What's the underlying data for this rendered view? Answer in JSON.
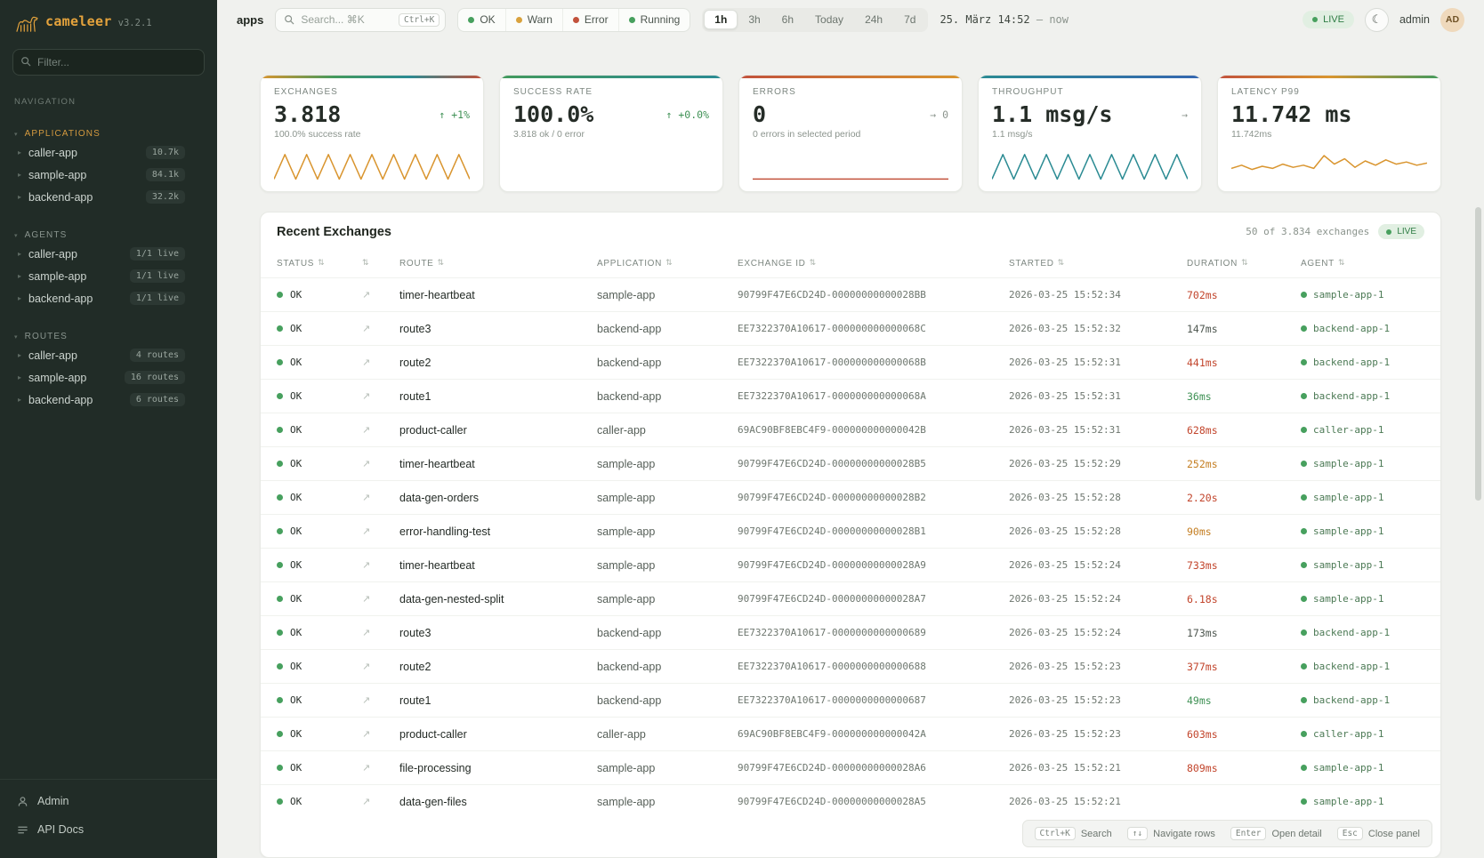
{
  "brand": {
    "name": "cameleer",
    "version": "v3.2.1"
  },
  "colors": {
    "ok_dot": "#47a05e",
    "accent_orange": "#e5a33c",
    "error_red": "#c2523c",
    "teal": "#2b8b93"
  },
  "icons": {
    "moon": "☾",
    "open_detail": "↗",
    "sort": "⇅",
    "chevron_right": "▸",
    "caret_down": "▾"
  },
  "sidebar": {
    "filter_placeholder": "Filter...",
    "nav_label": "NAVIGATION",
    "sections": [
      {
        "label": "APPLICATIONS",
        "tone": "accent",
        "items": [
          {
            "label": "caller-app",
            "badge": "10.7k"
          },
          {
            "label": "sample-app",
            "badge": "84.1k"
          },
          {
            "label": "backend-app",
            "badge": "32.2k"
          }
        ]
      },
      {
        "label": "AGENTS",
        "items": [
          {
            "label": "caller-app",
            "badge": "1/1 live"
          },
          {
            "label": "sample-app",
            "badge": "1/1 live"
          },
          {
            "label": "backend-app",
            "badge": "1/1 live"
          }
        ]
      },
      {
        "label": "ROUTES",
        "items": [
          {
            "label": "caller-app",
            "badge": "4 routes"
          },
          {
            "label": "sample-app",
            "badge": "16 routes"
          },
          {
            "label": "backend-app",
            "badge": "6 routes"
          }
        ]
      }
    ],
    "footer": {
      "admin": "Admin",
      "api_docs": "API Docs"
    }
  },
  "topbar": {
    "context": "apps",
    "search": {
      "placeholder": "Search... ⌘K",
      "kbd": "Ctrl+K"
    },
    "status_filters": [
      {
        "label": "OK",
        "color": "#47a05e"
      },
      {
        "label": "Warn",
        "color": "#d9a23d"
      },
      {
        "label": "Error",
        "color": "#c2523c"
      },
      {
        "label": "Running",
        "color": "#47a05e"
      }
    ],
    "time_ranges": [
      {
        "label": "1h",
        "state": "active"
      },
      {
        "label": "3h"
      },
      {
        "label": "6h"
      },
      {
        "label": "Today"
      },
      {
        "label": "24h"
      },
      {
        "label": "7d"
      }
    ],
    "date_start": "25. März 14:52",
    "date_sep": "—",
    "date_end": "now",
    "live_label": "LIVE",
    "user": "admin",
    "avatar": "AD"
  },
  "cards": [
    {
      "title": "EXCHANGES",
      "value": "3.818",
      "delta": "↑ +1%",
      "delta_tone": "up",
      "subtext": "100.0% success rate",
      "accent": "linear-gradient(90deg,#d9952f,#439a5d,#2b8b93,#c2523c)",
      "spark": {
        "color": "#d9952f",
        "points": [
          27,
          4,
          27,
          4,
          27,
          4,
          27,
          4,
          27,
          4,
          27,
          4,
          27,
          4,
          27,
          4,
          27,
          4,
          27
        ]
      }
    },
    {
      "title": "SUCCESS RATE",
      "value": "100.0%",
      "delta": "↑ +0.0%",
      "delta_tone": "up",
      "subtext": "3.818 ok / 0 error",
      "accent": "linear-gradient(90deg,#439a5d,#2b8b93)"
    },
    {
      "title": "ERRORS",
      "value": "0",
      "delta": "→ 0",
      "delta_tone": "flat",
      "subtext": "0 errors in selected period",
      "accent": "linear-gradient(90deg,#c2523c,#d9952f)",
      "spark": {
        "color": "#c2523c",
        "points": [
          27,
          27
        ]
      }
    },
    {
      "title": "THROUGHPUT",
      "value": "1.1 msg/s",
      "delta": "→",
      "delta_tone": "flat",
      "subtext": "1.1 msg/s",
      "accent": "linear-gradient(90deg,#2b8b93,#3567b0)",
      "spark": {
        "color": "#2b8b93",
        "points": [
          27,
          4,
          27,
          4,
          27,
          4,
          27,
          4,
          27,
          4,
          27,
          4,
          27,
          4,
          27,
          4,
          27,
          4,
          27
        ]
      }
    },
    {
      "title": "LATENCY P99",
      "value": "11.742 ms",
      "subtext": "11.742ms",
      "accent": "linear-gradient(90deg,#c2523c,#d9952f,#439a5d)",
      "spark": {
        "color": "#d9952f",
        "points": [
          17,
          14,
          18,
          15,
          17,
          13,
          16,
          14,
          17,
          5,
          13,
          8,
          16,
          10,
          14,
          9,
          13,
          11,
          14,
          12
        ]
      }
    }
  ],
  "table": {
    "title": "Recent Exchanges",
    "summary": "50 of 3.834 exchanges",
    "live_label": "LIVE",
    "columns": {
      "status": "STATUS",
      "route": "ROUTE",
      "application": "APPLICATION",
      "exchange_id": "EXCHANGE ID",
      "started": "STARTED",
      "duration": "DURATION",
      "agent": "AGENT"
    },
    "rows": [
      {
        "status": "OK",
        "route": "timer-heartbeat",
        "application": "sample-app",
        "exchange_id": "90799F47E6CD24D-00000000000028BB",
        "started": "2026-03-25 15:52:34",
        "duration": "702ms",
        "duration_level": "red",
        "agent": "sample-app-1"
      },
      {
        "status": "OK",
        "route": "route3",
        "application": "backend-app",
        "exchange_id": "EE7322370A10617-000000000000068C",
        "started": "2026-03-25 15:52:32",
        "duration": "147ms",
        "duration_level": "normal",
        "agent": "backend-app-1"
      },
      {
        "status": "OK",
        "route": "route2",
        "application": "backend-app",
        "exchange_id": "EE7322370A10617-000000000000068B",
        "started": "2026-03-25 15:52:31",
        "duration": "441ms",
        "duration_level": "red",
        "agent": "backend-app-1"
      },
      {
        "status": "OK",
        "route": "route1",
        "application": "backend-app",
        "exchange_id": "EE7322370A10617-000000000000068A",
        "started": "2026-03-25 15:52:31",
        "duration": "36ms",
        "duration_level": "green",
        "agent": "backend-app-1"
      },
      {
        "status": "OK",
        "route": "product-caller",
        "application": "caller-app",
        "exchange_id": "69AC90BF8EBC4F9-000000000000042B",
        "started": "2026-03-25 15:52:31",
        "duration": "628ms",
        "duration_level": "red",
        "agent": "caller-app-1"
      },
      {
        "status": "OK",
        "route": "timer-heartbeat",
        "application": "sample-app",
        "exchange_id": "90799F47E6CD24D-00000000000028B5",
        "started": "2026-03-25 15:52:29",
        "duration": "252ms",
        "duration_level": "orange",
        "agent": "sample-app-1"
      },
      {
        "status": "OK",
        "route": "data-gen-orders",
        "application": "sample-app",
        "exchange_id": "90799F47E6CD24D-00000000000028B2",
        "started": "2026-03-25 15:52:28",
        "duration": "2.20s",
        "duration_level": "red",
        "agent": "sample-app-1"
      },
      {
        "status": "OK",
        "route": "error-handling-test",
        "application": "sample-app",
        "exchange_id": "90799F47E6CD24D-00000000000028B1",
        "started": "2026-03-25 15:52:28",
        "duration": "90ms",
        "duration_level": "orange",
        "agent": "sample-app-1"
      },
      {
        "status": "OK",
        "route": "timer-heartbeat",
        "application": "sample-app",
        "exchange_id": "90799F47E6CD24D-00000000000028A9",
        "started": "2026-03-25 15:52:24",
        "duration": "733ms",
        "duration_level": "red",
        "agent": "sample-app-1"
      },
      {
        "status": "OK",
        "route": "data-gen-nested-split",
        "application": "sample-app",
        "exchange_id": "90799F47E6CD24D-00000000000028A7",
        "started": "2026-03-25 15:52:24",
        "duration": "6.18s",
        "duration_level": "red",
        "agent": "sample-app-1"
      },
      {
        "status": "OK",
        "route": "route3",
        "application": "backend-app",
        "exchange_id": "EE7322370A10617-0000000000000689",
        "started": "2026-03-25 15:52:24",
        "duration": "173ms",
        "duration_level": "normal",
        "agent": "backend-app-1"
      },
      {
        "status": "OK",
        "route": "route2",
        "application": "backend-app",
        "exchange_id": "EE7322370A10617-0000000000000688",
        "started": "2026-03-25 15:52:23",
        "duration": "377ms",
        "duration_level": "red",
        "agent": "backend-app-1"
      },
      {
        "status": "OK",
        "route": "route1",
        "application": "backend-app",
        "exchange_id": "EE7322370A10617-0000000000000687",
        "started": "2026-03-25 15:52:23",
        "duration": "49ms",
        "duration_level": "green",
        "agent": "backend-app-1"
      },
      {
        "status": "OK",
        "route": "product-caller",
        "application": "caller-app",
        "exchange_id": "69AC90BF8EBC4F9-000000000000042A",
        "started": "2026-03-25 15:52:23",
        "duration": "603ms",
        "duration_level": "red",
        "agent": "caller-app-1"
      },
      {
        "status": "OK",
        "route": "file-processing",
        "application": "sample-app",
        "exchange_id": "90799F47E6CD24D-00000000000028A6",
        "started": "2026-03-25 15:52:21",
        "duration": "809ms",
        "duration_level": "red",
        "agent": "sample-app-1"
      },
      {
        "status": "OK",
        "route": "data-gen-files",
        "application": "sample-app",
        "exchange_id": "90799F47E6CD24D-00000000000028A5",
        "started": "2026-03-25 15:52:21",
        "duration": "",
        "duration_level": "normal",
        "agent": "sample-app-1"
      }
    ]
  },
  "hints": [
    {
      "key": "Ctrl+K",
      "label": "Search"
    },
    {
      "key": "↑↓",
      "label": "Navigate rows"
    },
    {
      "key": "Enter",
      "label": "Open detail"
    },
    {
      "key": "Esc",
      "label": "Close panel"
    }
  ]
}
